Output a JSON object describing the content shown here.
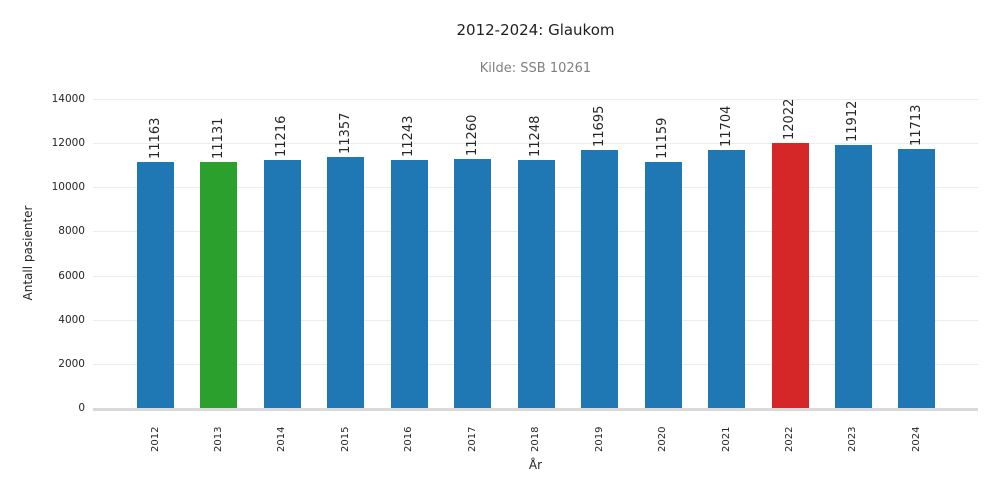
{
  "chart_data": {
    "type": "bar",
    "title": "2012-2024: Glaukom",
    "subtitle": "Kilde: SSB 10261",
    "xlabel": "År",
    "ylabel": "Antall pasienter",
    "categories": [
      "2012",
      "2013",
      "2014",
      "2015",
      "2016",
      "2017",
      "2018",
      "2019",
      "2020",
      "2021",
      "2022",
      "2023",
      "2024"
    ],
    "values": [
      11163,
      11131,
      11216,
      11357,
      11243,
      11260,
      11248,
      11695,
      11159,
      11704,
      12022,
      11912,
      11713
    ],
    "bar_colors": [
      "#1f77b4",
      "#2ca02c",
      "#1f77b4",
      "#1f77b4",
      "#1f77b4",
      "#1f77b4",
      "#1f77b4",
      "#1f77b4",
      "#1f77b4",
      "#1f77b4",
      "#d62728",
      "#1f77b4",
      "#1f77b4"
    ],
    "ylim": [
      0,
      14000
    ],
    "yticks": [
      0,
      2000,
      4000,
      6000,
      8000,
      10000,
      12000,
      14000
    ],
    "grid": "horizontal",
    "legend_position": "none"
  },
  "colors": {
    "bar_default": "#1f77b4",
    "bar_highlight_green": "#2ca02c",
    "bar_highlight_red": "#d62728",
    "gridline": "#ececec",
    "axis_line": "#d9d9d9",
    "text": "#262626",
    "subtitle_text": "#7f7f7f",
    "background": "#ffffff"
  }
}
